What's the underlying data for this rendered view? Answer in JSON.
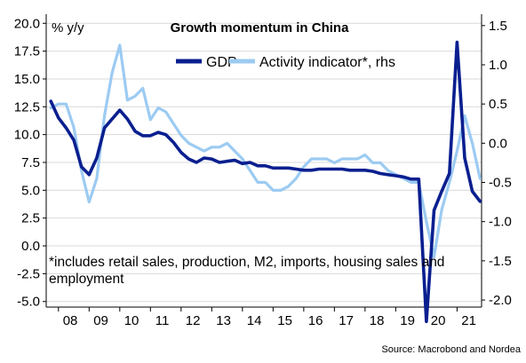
{
  "chart_data": {
    "type": "line",
    "title": "Growth momentum in China",
    "left_axis_unit": "% y/y",
    "note": [
      "*includes retail sales, production, M2, imports, housing sales and",
      "employment"
    ],
    "source": "Source: Macrobond and Nordea",
    "x_tick_labels": [
      "08",
      "09",
      "10",
      "11",
      "12",
      "13",
      "14",
      "15",
      "16",
      "17",
      "18",
      "19",
      "20",
      "21"
    ],
    "xlim": [
      2007.6,
      2021.8
    ],
    "y_left": {
      "lim": [
        -5.5,
        20.5
      ],
      "ticks": [
        20.0,
        17.5,
        15.0,
        12.5,
        10.0,
        7.5,
        5.0,
        2.5,
        0.0,
        -2.5,
        -5.0
      ],
      "tick_labels": [
        "20.0",
        "17.5",
        "15.0",
        "12.5",
        "10.0",
        "7.5",
        "5.0",
        "2.5",
        "0.0",
        "-2.5",
        "-5.0"
      ]
    },
    "y_right": {
      "lim": [
        -2.09,
        1.6
      ],
      "ticks": [
        1.5,
        1.0,
        0.5,
        0.0,
        -0.5,
        -1.0,
        -1.5,
        -2.0
      ],
      "tick_labels": [
        "1.5",
        "1.0",
        "0.5",
        "0.0",
        "-0.5",
        "-1.0",
        "-1.5",
        "-2.0"
      ]
    },
    "legend_position": "top-center",
    "grid": "horizontal",
    "series": [
      {
        "name": "GDP",
        "axis": "left",
        "color": "#0a1f8f",
        "x": [
          2007.75,
          2008.0,
          2008.25,
          2008.5,
          2008.75,
          2009.0,
          2009.25,
          2009.5,
          2009.75,
          2010.0,
          2010.25,
          2010.5,
          2010.75,
          2011.0,
          2011.25,
          2011.5,
          2011.75,
          2012.0,
          2012.25,
          2012.5,
          2012.75,
          2013.0,
          2013.25,
          2013.5,
          2013.75,
          2014.0,
          2014.25,
          2014.5,
          2014.75,
          2015.0,
          2015.25,
          2015.5,
          2015.75,
          2016.0,
          2016.25,
          2016.5,
          2016.75,
          2017.0,
          2017.25,
          2017.5,
          2017.75,
          2018.0,
          2018.25,
          2018.5,
          2018.75,
          2019.0,
          2019.25,
          2019.5,
          2019.75,
          2020.0,
          2020.25,
          2020.5,
          2020.75,
          2021.0,
          2021.25,
          2021.5,
          2021.75
        ],
        "y": [
          13.0,
          11.5,
          10.6,
          9.5,
          7.1,
          6.4,
          7.9,
          10.6,
          11.4,
          12.2,
          11.4,
          10.3,
          9.9,
          9.9,
          10.2,
          10.0,
          9.3,
          8.4,
          7.8,
          7.5,
          7.9,
          7.8,
          7.5,
          7.6,
          7.7,
          7.4,
          7.5,
          7.2,
          7.2,
          7.0,
          7.0,
          7.0,
          6.9,
          6.8,
          6.8,
          6.9,
          6.9,
          6.9,
          6.9,
          6.8,
          6.8,
          6.8,
          6.7,
          6.5,
          6.4,
          6.3,
          6.2,
          6.0,
          6.0,
          -6.8,
          3.2,
          4.9,
          6.5,
          18.3,
          7.9,
          4.9,
          4.0
        ]
      },
      {
        "name": "Activity indicator*, rhs",
        "axis": "right",
        "color": "#9ccbf2",
        "x": [
          2007.75,
          2008.0,
          2008.25,
          2008.5,
          2008.75,
          2009.0,
          2009.25,
          2009.5,
          2009.75,
          2010.0,
          2010.25,
          2010.5,
          2010.75,
          2011.0,
          2011.25,
          2011.5,
          2011.75,
          2012.0,
          2012.25,
          2012.5,
          2012.75,
          2013.0,
          2013.25,
          2013.5,
          2013.75,
          2014.0,
          2014.25,
          2014.5,
          2014.75,
          2015.0,
          2015.25,
          2015.5,
          2015.75,
          2016.0,
          2016.25,
          2016.5,
          2016.75,
          2017.0,
          2017.25,
          2017.5,
          2017.75,
          2018.0,
          2018.25,
          2018.5,
          2018.75,
          2019.0,
          2019.25,
          2019.5,
          2019.75,
          2020.0,
          2020.25,
          2020.5,
          2020.75,
          2021.0,
          2021.25,
          2021.5,
          2021.75
        ],
        "y": [
          0.45,
          0.5,
          0.5,
          0.2,
          -0.35,
          -0.75,
          -0.45,
          0.35,
          0.9,
          1.25,
          0.55,
          0.6,
          0.7,
          0.3,
          0.45,
          0.4,
          0.25,
          0.1,
          0.0,
          -0.05,
          -0.1,
          -0.05,
          -0.05,
          0.0,
          -0.1,
          -0.2,
          -0.35,
          -0.5,
          -0.5,
          -0.6,
          -0.6,
          -0.55,
          -0.45,
          -0.3,
          -0.2,
          -0.2,
          -0.2,
          -0.25,
          -0.2,
          -0.2,
          -0.2,
          -0.15,
          -0.25,
          -0.25,
          -0.35,
          -0.4,
          -0.45,
          -0.5,
          -0.5,
          -1.0,
          -1.45,
          -0.85,
          -0.5,
          -0.1,
          0.35,
          0.0,
          -0.45
        ]
      }
    ]
  }
}
